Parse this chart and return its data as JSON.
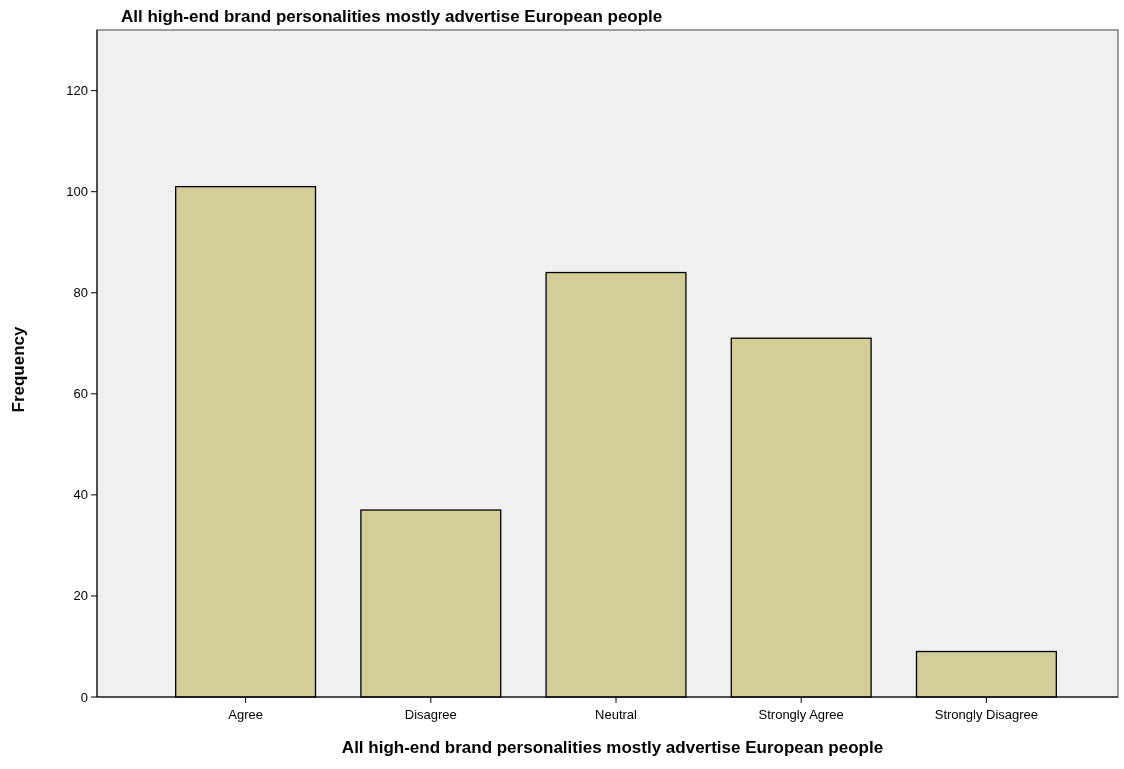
{
  "chart_data": {
    "type": "bar",
    "title": "All high-end brand personalities mostly advertise European people",
    "xlabel": "All high-end brand personalities mostly advertise European people",
    "ylabel": "Frequency",
    "categories": [
      "Agree",
      "Disagree",
      "Neutral",
      "Strongly Agree",
      "Strongly Disagree"
    ],
    "values": [
      101,
      37,
      84,
      71,
      9
    ],
    "color": "#d3ce97",
    "ylim": [
      0,
      132
    ],
    "yticks": [
      0,
      20,
      40,
      60,
      80,
      100,
      120
    ],
    "grid": false
  }
}
